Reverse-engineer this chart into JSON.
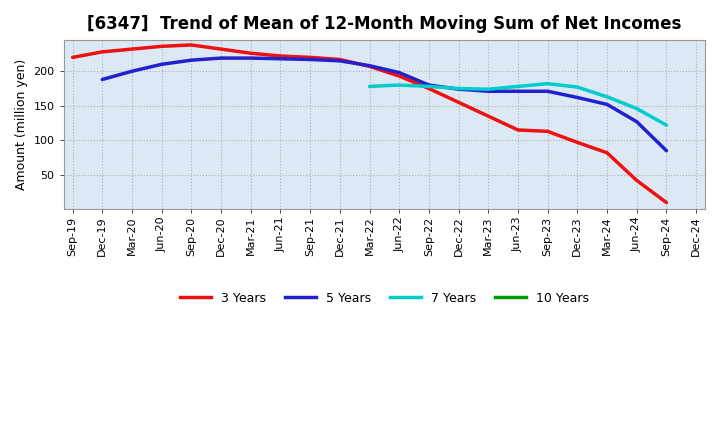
{
  "title": "[6347]  Trend of Mean of 12-Month Moving Sum of Net Incomes",
  "ylabel": "Amount (million yen)",
  "background_color": "#ffffff",
  "plot_bg_color": "#dce9f5",
  "grid_color": "#888888",
  "title_fontsize": 12,
  "axis_label_fontsize": 9,
  "tick_fontsize": 8,
  "ylim": [
    0,
    245
  ],
  "yticks": [
    50,
    100,
    150,
    200
  ],
  "x_labels": [
    "Sep-19",
    "Dec-19",
    "Mar-20",
    "Jun-20",
    "Sep-20",
    "Dec-20",
    "Mar-21",
    "Jun-21",
    "Sep-21",
    "Dec-21",
    "Mar-22",
    "Jun-22",
    "Sep-22",
    "Dec-22",
    "Mar-23",
    "Jun-23",
    "Sep-23",
    "Dec-23",
    "Mar-24",
    "Jun-24",
    "Sep-24",
    "Dec-24"
  ],
  "series": {
    "3 Years": {
      "color": "#ee1111",
      "values": [
        220,
        228,
        232,
        236,
        238,
        232,
        226,
        222,
        220,
        217,
        207,
        193,
        175,
        155,
        135,
        115,
        113,
        97,
        82,
        42,
        10,
        null
      ]
    },
    "5 Years": {
      "color": "#2222cc",
      "values": [
        null,
        188,
        200,
        210,
        216,
        219,
        219,
        218,
        217,
        215,
        208,
        198,
        180,
        174,
        171,
        171,
        171,
        162,
        152,
        127,
        85,
        null
      ]
    },
    "7 Years": {
      "color": "#00cccc",
      "values": [
        null,
        null,
        null,
        null,
        null,
        null,
        null,
        null,
        null,
        null,
        178,
        180,
        178,
        175,
        174,
        178,
        182,
        177,
        163,
        146,
        122,
        null
      ]
    },
    "10 Years": {
      "color": "#009900",
      "values": [
        null,
        null,
        null,
        null,
        null,
        null,
        null,
        null,
        null,
        null,
        null,
        null,
        null,
        null,
        null,
        null,
        null,
        null,
        null,
        null,
        null,
        null
      ]
    }
  },
  "legend_labels": [
    "3 Years",
    "5 Years",
    "7 Years",
    "10 Years"
  ],
  "legend_colors": [
    "#ee1111",
    "#2222cc",
    "#00cccc",
    "#009900"
  ],
  "legend_fontsize": 9,
  "linewidth": 2.5
}
